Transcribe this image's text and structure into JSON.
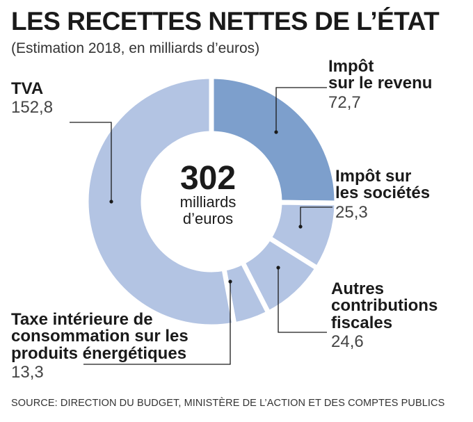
{
  "title": "LES RECETTES NETTES DE L’ÉTAT",
  "subtitle": "(Estimation 2018, en milliards d’euros)",
  "source": "SOURCE: DIRECTION DU BUDGET, MINISTÈRE DE L’ACTION ET DES COMPTES PUBLICS",
  "chart_data": {
    "type": "pie",
    "donut": true,
    "center_value": "302",
    "center_unit_line1": "milliards",
    "center_unit_line2": "d’euros",
    "slices": [
      {
        "name_line1": "Impôt",
        "name_line2": "sur le revenu",
        "name_line3": "",
        "value": 72.7,
        "value_label": "72,7",
        "color": "#7d9fcc"
      },
      {
        "name_line1": "Impôt sur",
        "name_line2": "les sociétés",
        "name_line3": "",
        "value": 25.3,
        "value_label": "25,3",
        "color": "#b3c4e3"
      },
      {
        "name_line1": "Autres",
        "name_line2": "contributions",
        "name_line3": "fiscales",
        "value": 24.6,
        "value_label": "24,6",
        "color": "#b3c4e3"
      },
      {
        "name_line1": "Taxe intérieure de",
        "name_line2": "consommation sur les",
        "name_line3": "produits énergétiques",
        "value": 13.3,
        "value_label": "13,3",
        "color": "#b3c4e3"
      },
      {
        "name_line1": "TVA",
        "name_line2": "",
        "name_line3": "",
        "value": 152.8,
        "value_label": "152,8",
        "color": "#b3c4e3"
      }
    ],
    "leader_color": "#1a1a1a",
    "separator_color": "#ffffff"
  }
}
